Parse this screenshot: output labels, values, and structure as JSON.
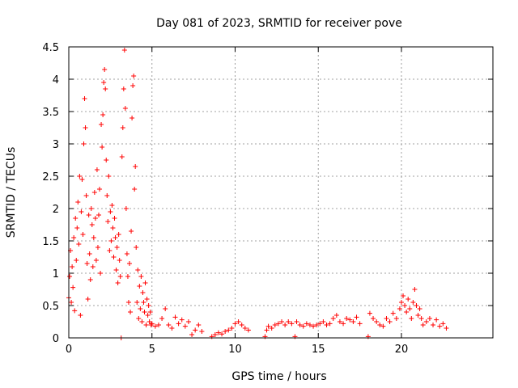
{
  "chart_data": {
    "type": "scatter",
    "title": "Day 081 of 2023, SRMTID for receiver pove",
    "xlabel": "GPS time / hours",
    "ylabel": "SRMTID / TECUs",
    "xlim": [
      0,
      25.5
    ],
    "ylim": [
      0,
      4.5
    ],
    "xticks": [
      0,
      5,
      10,
      15,
      20
    ],
    "xtick_labels": [
      "0",
      "5",
      "10",
      "15",
      "20"
    ],
    "yticks": [
      0,
      0.5,
      1,
      1.5,
      2,
      2.5,
      3,
      3.5,
      4,
      4.5
    ],
    "ytick_labels": [
      "0",
      "0.5",
      "1",
      "1.5",
      "2",
      "2.5",
      "3",
      "3.5",
      "4",
      "4.5"
    ],
    "grid": true,
    "marker": "plus",
    "color": "#ff0000",
    "series": [
      {
        "name": "SRMTID",
        "points": [
          [
            0.0,
            0.62
          ],
          [
            0.05,
            0.95
          ],
          [
            0.1,
            1.35
          ],
          [
            0.15,
            0.55
          ],
          [
            0.2,
            1.1
          ],
          [
            0.25,
            0.78
          ],
          [
            0.3,
            1.55
          ],
          [
            0.35,
            0.42
          ],
          [
            0.4,
            1.85
          ],
          [
            0.45,
            1.2
          ],
          [
            0.5,
            1.7
          ],
          [
            0.55,
            2.1
          ],
          [
            0.6,
            1.45
          ],
          [
            0.65,
            2.5
          ],
          [
            0.7,
            0.35
          ],
          [
            0.75,
            1.95
          ],
          [
            0.8,
            2.45
          ],
          [
            0.85,
            1.6
          ],
          [
            0.9,
            3.0
          ],
          [
            0.95,
            3.7
          ],
          [
            1.0,
            3.25
          ],
          [
            1.05,
            2.2
          ],
          [
            1.1,
            1.15
          ],
          [
            1.15,
            0.6
          ],
          [
            1.2,
            1.9
          ],
          [
            1.25,
            1.3
          ],
          [
            1.3,
            0.9
          ],
          [
            1.35,
            2.0
          ],
          [
            1.4,
            1.75
          ],
          [
            1.45,
            1.1
          ],
          [
            1.5,
            1.55
          ],
          [
            1.55,
            2.25
          ],
          [
            1.6,
            1.85
          ],
          [
            1.65,
            1.2
          ],
          [
            1.7,
            2.6
          ],
          [
            1.75,
            1.4
          ],
          [
            1.8,
            1.9
          ],
          [
            1.85,
            2.3
          ],
          [
            1.9,
            1.0
          ],
          [
            1.95,
            3.3
          ],
          [
            2.0,
            2.95
          ],
          [
            2.05,
            3.45
          ],
          [
            2.1,
            3.95
          ],
          [
            2.15,
            4.15
          ],
          [
            2.2,
            3.85
          ],
          [
            2.25,
            2.75
          ],
          [
            2.3,
            2.2
          ],
          [
            2.35,
            1.8
          ],
          [
            2.4,
            2.5
          ],
          [
            2.45,
            1.35
          ],
          [
            2.5,
            1.95
          ],
          [
            2.55,
            1.5
          ],
          [
            2.6,
            2.05
          ],
          [
            2.65,
            1.7
          ],
          [
            2.7,
            1.25
          ],
          [
            2.75,
            1.85
          ],
          [
            2.8,
            1.55
          ],
          [
            2.85,
            1.05
          ],
          [
            2.9,
            1.4
          ],
          [
            2.95,
            0.85
          ],
          [
            3.0,
            1.6
          ],
          [
            3.05,
            1.2
          ],
          [
            3.1,
            0.95
          ],
          [
            3.15,
            0.0
          ],
          [
            3.2,
            2.8
          ],
          [
            3.25,
            3.25
          ],
          [
            3.3,
            3.85
          ],
          [
            3.35,
            4.45
          ],
          [
            3.4,
            3.55
          ],
          [
            3.45,
            2.0
          ],
          [
            3.5,
            1.3
          ],
          [
            3.55,
            0.95
          ],
          [
            3.6,
            0.55
          ],
          [
            3.65,
            1.15
          ],
          [
            3.7,
            0.4
          ],
          [
            3.75,
            1.65
          ],
          [
            3.8,
            3.4
          ],
          [
            3.85,
            3.9
          ],
          [
            3.9,
            4.05
          ],
          [
            3.95,
            2.3
          ],
          [
            4.0,
            2.65
          ],
          [
            4.05,
            1.4
          ],
          [
            4.1,
            0.55
          ],
          [
            4.15,
            1.05
          ],
          [
            4.2,
            0.3
          ],
          [
            4.25,
            0.8
          ],
          [
            4.3,
            0.45
          ],
          [
            4.35,
            0.95
          ],
          [
            4.4,
            0.25
          ],
          [
            4.45,
            0.7
          ],
          [
            4.5,
            0.55
          ],
          [
            4.55,
            0.4
          ],
          [
            4.6,
            0.85
          ],
          [
            4.65,
            0.2
          ],
          [
            4.7,
            0.6
          ],
          [
            4.75,
            0.35
          ],
          [
            4.8,
            0.5
          ],
          [
            4.85,
            0.25
          ],
          [
            4.9,
            0.4
          ],
          [
            4.95,
            0.2
          ],
          [
            5.0,
            0.22
          ],
          [
            5.2,
            0.18
          ],
          [
            5.4,
            0.2
          ],
          [
            5.6,
            0.3
          ],
          [
            5.8,
            0.45
          ],
          [
            6.0,
            0.2
          ],
          [
            6.2,
            0.15
          ],
          [
            6.4,
            0.32
          ],
          [
            6.6,
            0.22
          ],
          [
            6.8,
            0.28
          ],
          [
            7.0,
            0.18
          ],
          [
            7.2,
            0.25
          ],
          [
            7.4,
            0.05
          ],
          [
            7.6,
            0.12
          ],
          [
            7.8,
            0.2
          ],
          [
            8.0,
            0.1
          ],
          [
            8.6,
            0.02
          ],
          [
            8.8,
            0.05
          ],
          [
            9.0,
            0.08
          ],
          [
            9.2,
            0.06
          ],
          [
            9.4,
            0.1
          ],
          [
            9.6,
            0.12
          ],
          [
            9.8,
            0.15
          ],
          [
            10.0,
            0.22
          ],
          [
            10.2,
            0.25
          ],
          [
            10.4,
            0.2
          ],
          [
            10.6,
            0.15
          ],
          [
            10.8,
            0.12
          ],
          [
            11.8,
            0.02
          ],
          [
            11.9,
            0.12
          ],
          [
            12.0,
            0.18
          ],
          [
            12.2,
            0.15
          ],
          [
            12.4,
            0.2
          ],
          [
            12.6,
            0.22
          ],
          [
            12.8,
            0.25
          ],
          [
            13.0,
            0.2
          ],
          [
            13.2,
            0.25
          ],
          [
            13.4,
            0.22
          ],
          [
            13.6,
            0.02
          ],
          [
            13.7,
            0.25
          ],
          [
            13.9,
            0.2
          ],
          [
            14.1,
            0.18
          ],
          [
            14.3,
            0.22
          ],
          [
            14.5,
            0.2
          ],
          [
            14.7,
            0.18
          ],
          [
            14.9,
            0.2
          ],
          [
            15.1,
            0.22
          ],
          [
            15.3,
            0.25
          ],
          [
            15.5,
            0.2
          ],
          [
            15.7,
            0.22
          ],
          [
            15.9,
            0.3
          ],
          [
            16.1,
            0.35
          ],
          [
            16.3,
            0.25
          ],
          [
            16.5,
            0.22
          ],
          [
            16.7,
            0.3
          ],
          [
            16.9,
            0.28
          ],
          [
            17.1,
            0.25
          ],
          [
            17.3,
            0.32
          ],
          [
            17.5,
            0.22
          ],
          [
            18.0,
            0.02
          ],
          [
            18.1,
            0.38
          ],
          [
            18.3,
            0.3
          ],
          [
            18.5,
            0.25
          ],
          [
            18.7,
            0.2
          ],
          [
            18.9,
            0.18
          ],
          [
            19.1,
            0.3
          ],
          [
            19.3,
            0.25
          ],
          [
            19.5,
            0.38
          ],
          [
            19.7,
            0.3
          ],
          [
            19.9,
            0.45
          ],
          [
            20.0,
            0.55
          ],
          [
            20.1,
            0.65
          ],
          [
            20.2,
            0.5
          ],
          [
            20.3,
            0.4
          ],
          [
            20.4,
            0.6
          ],
          [
            20.5,
            0.45
          ],
          [
            20.6,
            0.3
          ],
          [
            20.7,
            0.55
          ],
          [
            20.8,
            0.75
          ],
          [
            20.9,
            0.5
          ],
          [
            21.0,
            0.35
          ],
          [
            21.1,
            0.45
          ],
          [
            21.2,
            0.3
          ],
          [
            21.3,
            0.2
          ],
          [
            21.5,
            0.25
          ],
          [
            21.7,
            0.3
          ],
          [
            21.9,
            0.2
          ],
          [
            22.1,
            0.28
          ],
          [
            22.3,
            0.18
          ],
          [
            22.5,
            0.22
          ],
          [
            22.7,
            0.15
          ]
        ]
      }
    ]
  }
}
